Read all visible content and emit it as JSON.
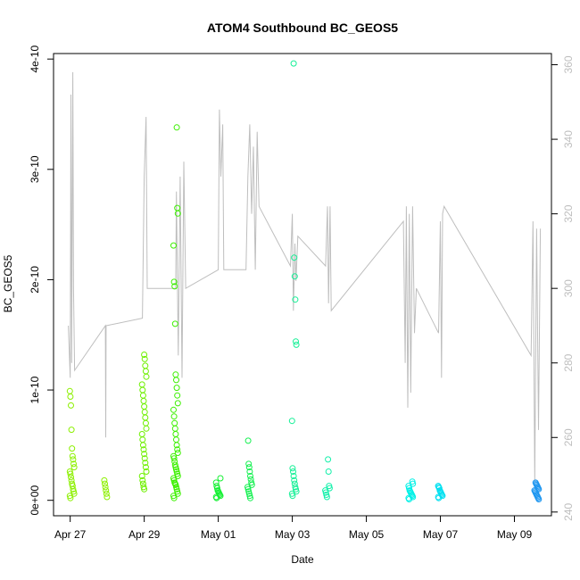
{
  "chart_data": {
    "type": "scatter",
    "title": "ATOM4 Southbound BC_GEOS5",
    "xlabel": "Date",
    "ylabel": "BC_GEOS5",
    "x_ticks": [
      "Apr 27",
      "Apr 29",
      "May 01",
      "May 03",
      "May 05",
      "May 07",
      "May 09"
    ],
    "x_tick_days": [
      0,
      2,
      4,
      6,
      8,
      10,
      12
    ],
    "x_range_days": [
      -0.45,
      13.0
    ],
    "y_ticks": [
      "0e+00",
      "1e-10",
      "2e-10",
      "3e-10",
      "4e-10"
    ],
    "y_range": [
      -1.4e-11,
      4.05e-10
    ],
    "y2_ticks": [
      "240",
      "260",
      "280",
      "300",
      "320",
      "340",
      "360"
    ],
    "y2_range": [
      239,
      363
    ],
    "y2_line_color": "#bebebe",
    "grid": false,
    "legend": "none",
    "series": [
      {
        "day": 0.05,
        "color": "#8cf000",
        "values": [
          9.9e-11,
          9.4e-11,
          8.6e-11,
          6.4e-11,
          4.7e-11,
          4e-11,
          3.7e-11,
          3.3e-11,
          3e-11,
          2.6e-11,
          2.4e-11,
          2.1e-11,
          1.8e-11,
          1.5e-11,
          1.3e-11,
          1e-11,
          8e-12,
          6e-12,
          4e-12,
          2e-12
        ]
      },
      {
        "day": 0.95,
        "color": "#8cf000",
        "values": [
          1.8e-11,
          1.5e-11,
          1.2e-11,
          9e-12,
          6e-12,
          3e-12
        ]
      },
      {
        "day": 2.0,
        "color": "#6ef000",
        "values": [
          1.32e-10,
          1.28e-10,
          1.22e-10,
          1.17e-10,
          1.12e-10,
          1.05e-10,
          1e-10,
          9.5e-11,
          9e-11,
          8.5e-11,
          8e-11,
          7.5e-11,
          7e-11,
          6.5e-11,
          6e-11,
          5.5e-11,
          5e-11,
          4.6e-11,
          4.2e-11,
          3.8e-11,
          3.4e-11,
          3e-11,
          2.6e-11,
          2.2e-11,
          1.8e-11,
          1.5e-11,
          1.2e-11,
          1e-11
        ]
      },
      {
        "day": 2.85,
        "color": "#3cf000",
        "values": [
          3.38e-10,
          2.65e-10,
          2.6e-10,
          2.31e-10,
          1.98e-10,
          1.94e-10,
          1.6e-10,
          1.14e-10,
          1.09e-10,
          1.02e-10,
          9.5e-11,
          8.8e-11,
          8.2e-11,
          7.6e-11,
          7e-11,
          6.5e-11,
          6e-11,
          5.5e-11,
          5e-11,
          4.6e-11,
          4.3e-11,
          4e-11,
          3.8e-11,
          3.5e-11,
          3.2e-11,
          3e-11,
          2.8e-11,
          2.6e-11,
          2.4e-11,
          2.2e-11,
          2e-11,
          1.8e-11,
          1.6e-11,
          1.5e-11,
          1.4e-11,
          1.2e-11,
          1e-11,
          8e-12,
          6e-12,
          4e-12,
          2e-12
        ]
      },
      {
        "day": 4.0,
        "color": "#14f032",
        "values": [
          2e-11,
          1.6e-11,
          1.3e-11,
          1.1e-11,
          9e-12,
          8e-12,
          7e-12,
          6e-12,
          5e-12,
          4e-12,
          3e-12,
          2e-12
        ]
      },
      {
        "day": 4.85,
        "color": "#14f050",
        "values": [
          5.4e-11,
          3.3e-11,
          3e-11,
          2.6e-11,
          2.2e-11,
          1.9e-11,
          1.6e-11,
          1.4e-11,
          1.2e-11,
          1e-11,
          8e-12,
          6e-12,
          4e-12,
          2e-12
        ]
      },
      {
        "day": 6.05,
        "color": "#14f096",
        "values": [
          3.96e-10,
          2.2e-10,
          2.03e-10,
          1.82e-10,
          1.44e-10,
          1.41e-10,
          7.2e-11,
          2.9e-11,
          2.6e-11,
          2.2e-11,
          1.8e-11,
          1.5e-11,
          1.2e-11,
          1e-11,
          8e-12,
          6e-12,
          4e-12
        ]
      },
      {
        "day": 6.95,
        "color": "#14f0aa",
        "values": [
          3.7e-11,
          2.6e-11,
          1.3e-11,
          1.1e-11,
          9e-12,
          7e-12,
          5e-12,
          3e-12
        ]
      },
      {
        "day": 9.2,
        "color": "#00f0e6",
        "values": [
          1.7e-11,
          1.5e-11,
          1.3e-11,
          1.1e-11,
          9e-12,
          8e-12,
          7e-12,
          6e-12,
          5e-12,
          4e-12,
          3e-12,
          2e-12,
          1e-12
        ]
      },
      {
        "day": 10.0,
        "color": "#00e0f0",
        "values": [
          1.3e-11,
          1.2e-11,
          1.1e-11,
          9e-12,
          8e-12,
          7e-12,
          6e-12,
          5e-12,
          4e-12,
          3e-12,
          2e-12
        ]
      },
      {
        "day": 12.6,
        "color": "#1e96f0",
        "values": [
          1.6e-11,
          1.5e-11,
          1.4e-11,
          1.3e-11,
          1.2e-11,
          1.1e-11,
          1e-11,
          9e-12,
          8e-12,
          7e-12,
          6e-12,
          5e-12,
          4e-12,
          3e-12,
          2e-12,
          1e-12
        ]
      }
    ],
    "y2_line": [
      [
        -0.05,
        290
      ],
      [
        0.0,
        276
      ],
      [
        0.02,
        352
      ],
      [
        0.04,
        280
      ],
      [
        0.07,
        358
      ],
      [
        0.09,
        300
      ],
      [
        0.12,
        278
      ],
      [
        0.95,
        290
      ],
      [
        0.96,
        260
      ],
      [
        0.97,
        290
      ],
      [
        1.95,
        292
      ],
      [
        2.0,
        330
      ],
      [
        2.05,
        346
      ],
      [
        2.08,
        300
      ],
      [
        2.85,
        300
      ],
      [
        2.87,
        326
      ],
      [
        2.92,
        282
      ],
      [
        2.97,
        330
      ],
      [
        3.02,
        276
      ],
      [
        3.07,
        334
      ],
      [
        3.12,
        300
      ],
      [
        4.0,
        305
      ],
      [
        4.03,
        348
      ],
      [
        4.07,
        330
      ],
      [
        4.12,
        344
      ],
      [
        4.15,
        305
      ],
      [
        4.75,
        305
      ],
      [
        4.8,
        330
      ],
      [
        4.85,
        344
      ],
      [
        4.9,
        320
      ],
      [
        4.95,
        338
      ],
      [
        5.0,
        305
      ],
      [
        5.05,
        342
      ],
      [
        5.1,
        322
      ],
      [
        5.95,
        306
      ],
      [
        6.0,
        320
      ],
      [
        6.03,
        294
      ],
      [
        6.07,
        312
      ],
      [
        6.1,
        302
      ],
      [
        6.15,
        314
      ],
      [
        6.9,
        306
      ],
      [
        6.95,
        322
      ],
      [
        6.98,
        296
      ],
      [
        7.02,
        322
      ],
      [
        7.05,
        294
      ],
      [
        9.0,
        318
      ],
      [
        9.05,
        280
      ],
      [
        9.08,
        322
      ],
      [
        9.12,
        268
      ],
      [
        9.16,
        320
      ],
      [
        9.2,
        272
      ],
      [
        9.25,
        322
      ],
      [
        9.3,
        288
      ],
      [
        9.35,
        300
      ],
      [
        9.95,
        288
      ],
      [
        10.0,
        318
      ],
      [
        10.03,
        276
      ],
      [
        10.06,
        320
      ],
      [
        10.1,
        322
      ],
      [
        12.45,
        282
      ],
      [
        12.5,
        318
      ],
      [
        12.55,
        248
      ],
      [
        12.6,
        316
      ],
      [
        12.65,
        262
      ],
      [
        12.7,
        316
      ]
    ]
  }
}
